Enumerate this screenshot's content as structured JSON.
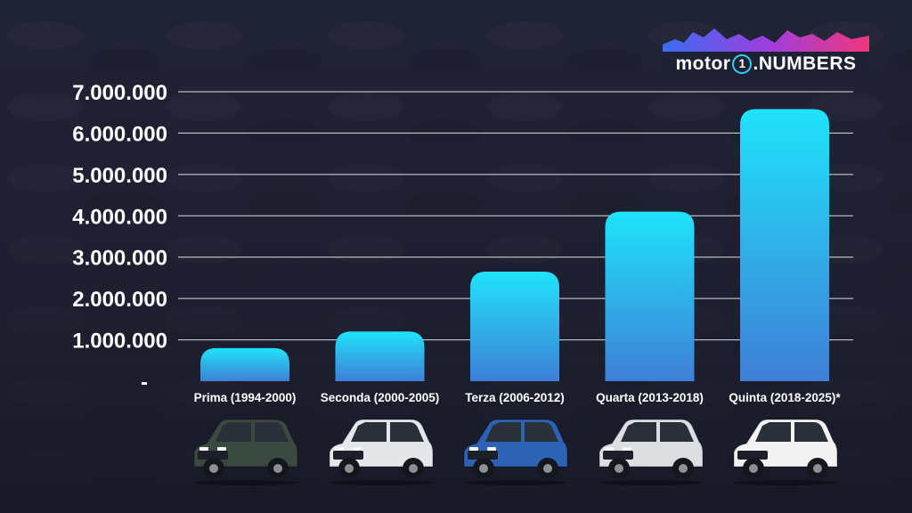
{
  "logo": {
    "part1": "motor",
    "digit": "1",
    "part2": ".NUMBERS"
  },
  "colors": {
    "bar_top": "#1fe3fb",
    "bar_bottom": "#3e7fd6",
    "gridline": "#ffffff",
    "text": "#ffffff",
    "logo_ring": "#2ad3f0"
  },
  "chart_data": {
    "type": "bar",
    "title": "",
    "xlabel": "",
    "ylabel": "",
    "ylim": [
      0,
      7000000
    ],
    "grid": true,
    "yticks": [
      "-",
      "1.000.000",
      "2.000.000",
      "3.000.000",
      "4.000.000",
      "5.000.000",
      "6.000.000",
      "7.000.000"
    ],
    "categories": [
      "Prima (1994-2000)",
      "Seconda (2000-2005)",
      "Terza (2006-2012)",
      "Quarta (2013-2018)",
      "Quinta (2018-2025)*"
    ],
    "values": [
      800000,
      1200000,
      2650000,
      4100000,
      6580000
    ]
  },
  "cars": [
    {
      "icon": "car-gen1-icon",
      "body": "#3a4a40"
    },
    {
      "icon": "car-gen2-icon",
      "body": "#e4e6ea"
    },
    {
      "icon": "car-gen3-icon",
      "body": "#2d63b4"
    },
    {
      "icon": "car-gen4-icon",
      "body": "#dcdee2"
    },
    {
      "icon": "car-gen5-icon",
      "body": "#f2f2f2"
    }
  ]
}
